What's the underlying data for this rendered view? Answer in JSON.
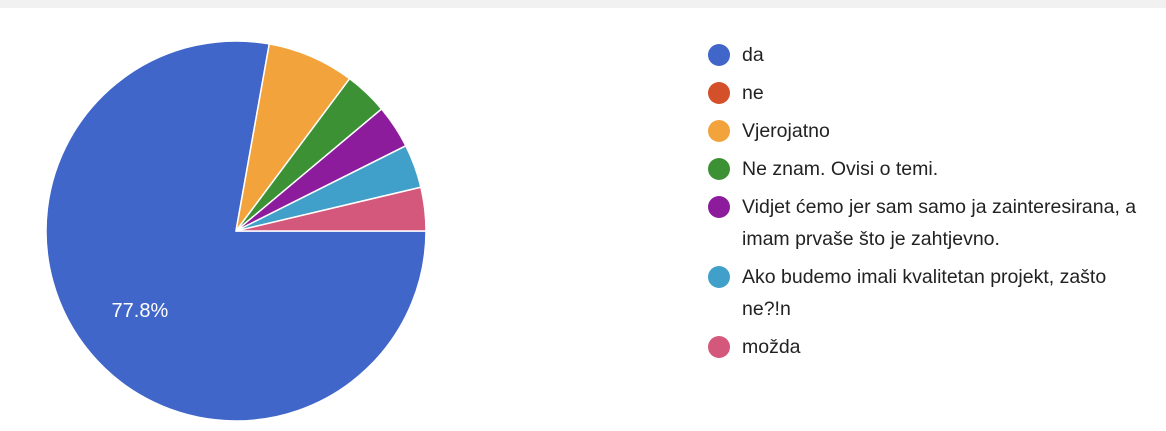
{
  "chart_data": {
    "type": "pie",
    "categories": [
      "da",
      "ne",
      "Vjerojatno",
      "Ne znam. Ovisi o temi.",
      "Vidjet ćemo jer sam samo ja zainteresirana, a imam prvaše što je zahtjevno.",
      "Ako budemo imali kvalitetan projekt, zašto ne?!n",
      "možda"
    ],
    "values": [
      77.8,
      0,
      7.4,
      3.7,
      3.7,
      3.7,
      3.7
    ],
    "value_labels": [
      "77.8%",
      null,
      null,
      null,
      null,
      null,
      null
    ],
    "colors": [
      "#4066c9",
      "#d4502b",
      "#f2a33c",
      "#3b9134",
      "#8c1c9c",
      "#40a0c9",
      "#d4577c"
    ]
  }
}
